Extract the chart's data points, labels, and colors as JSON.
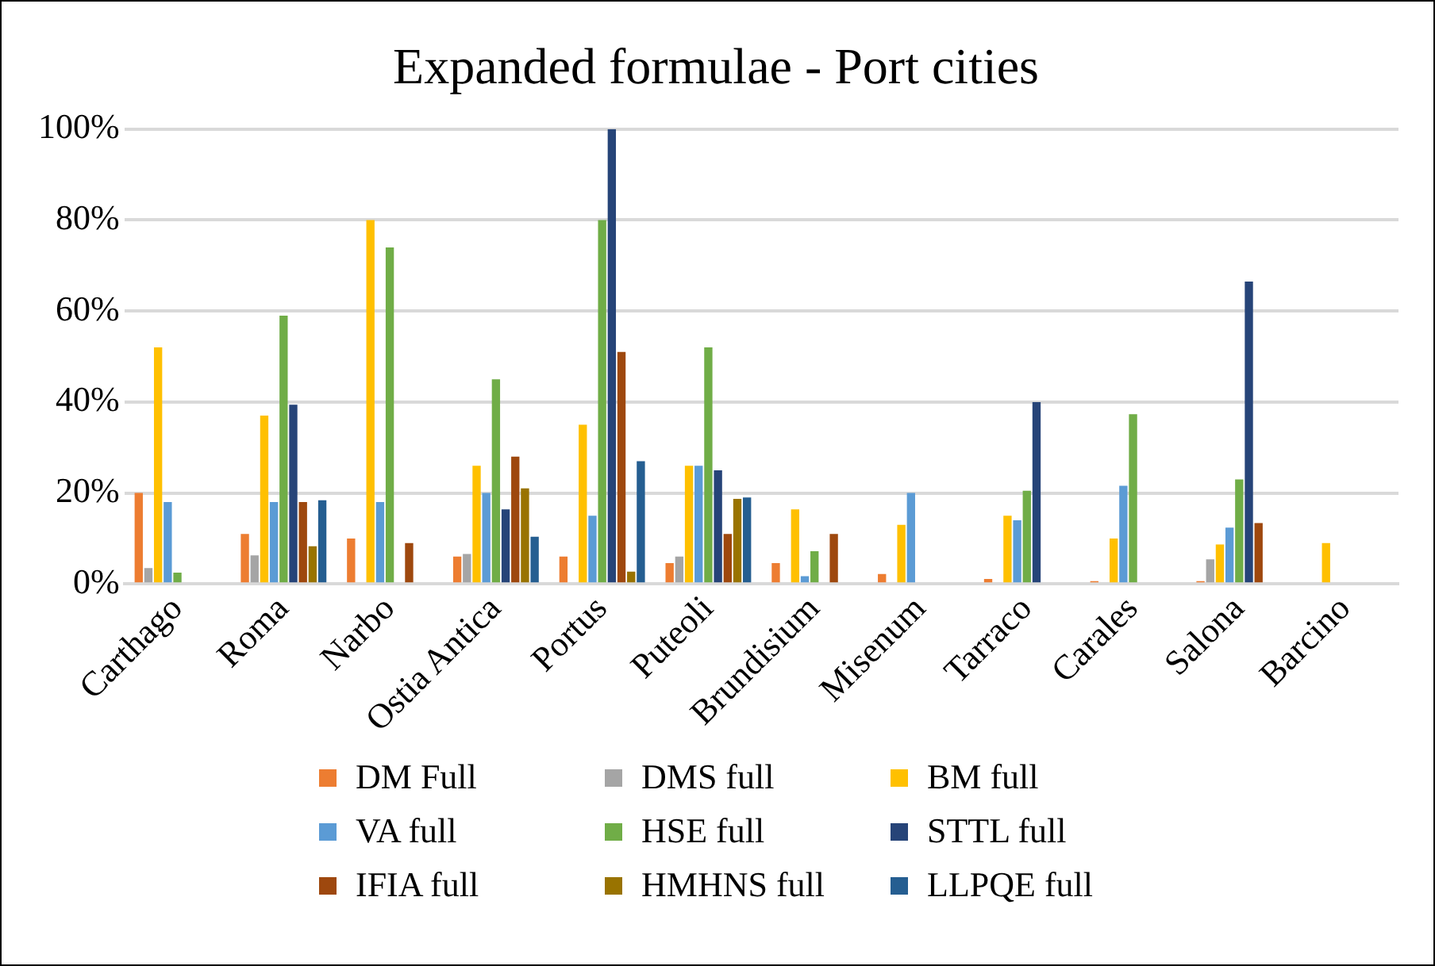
{
  "chart_data": {
    "type": "bar",
    "title": "Expanded formulae - Port cities",
    "categories": [
      "Carthago",
      "Roma",
      "Narbo",
      "Ostia Antica",
      "Portus",
      "Puteoli",
      "Brundisium",
      "Misenum",
      "Tarraco",
      "Carales",
      "Salona",
      "Barcino"
    ],
    "series": [
      {
        "name": "DM Full",
        "color": "#ed7d31",
        "values": [
          20,
          11,
          10,
          6,
          6,
          4.6,
          4.6,
          2.2,
          1.1,
          0.6,
          0.6,
          0
        ]
      },
      {
        "name": "DMS full",
        "color": "#a5a5a5",
        "values": [
          3.5,
          6.3,
          0,
          6.6,
          0,
          6,
          0,
          0,
          0,
          0,
          5.4,
          0
        ]
      },
      {
        "name": "BM full",
        "color": "#ffc000",
        "values": [
          52,
          37,
          80,
          26,
          35,
          26,
          16.4,
          13,
          15,
          10,
          8.7,
          9
        ]
      },
      {
        "name": "VA full",
        "color": "#5b9bd5",
        "values": [
          18,
          18,
          18,
          20,
          15,
          26,
          1.7,
          20,
          14,
          21.6,
          12.4,
          0
        ]
      },
      {
        "name": "HSE full",
        "color": "#70ad47",
        "values": [
          2.5,
          59,
          74,
          45,
          80,
          52,
          7.2,
          0,
          20.5,
          37.3,
          23,
          0
        ]
      },
      {
        "name": "STTL full",
        "color": "#264478",
        "values": [
          0,
          39.4,
          0,
          16.4,
          100,
          25,
          0,
          0,
          40,
          0,
          66.5,
          0
        ]
      },
      {
        "name": "IFIA full",
        "color": "#9e480e",
        "values": [
          0,
          18,
          9,
          28,
          51,
          11,
          11,
          0,
          0,
          0,
          13.4,
          0
        ]
      },
      {
        "name": "HMHNS full",
        "color": "#997300",
        "values": [
          0,
          8.3,
          0,
          21,
          2.7,
          18.7,
          0,
          0,
          0,
          0,
          0,
          0
        ]
      },
      {
        "name": "LLPQE full",
        "color": "#255e91",
        "values": [
          0,
          18.4,
          0,
          10.4,
          27,
          19,
          0,
          0,
          0,
          0,
          0,
          0
        ]
      }
    ],
    "ylim": [
      0,
      100
    ],
    "yticks": [
      {
        "value": 0,
        "label": "0%"
      },
      {
        "value": 20,
        "label": "20%"
      },
      {
        "value": 40,
        "label": "40%"
      },
      {
        "value": 60,
        "label": "60%"
      },
      {
        "value": 80,
        "label": "80%"
      },
      {
        "value": 100,
        "label": "100%"
      }
    ],
    "grid": "y",
    "legend": "bottom"
  }
}
